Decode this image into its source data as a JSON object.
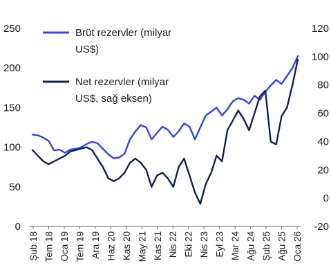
{
  "chart_data": {
    "type": "line",
    "x_tick_labels": [
      "Şub 18",
      "Tem 18",
      "Oca 19",
      "Tem 19",
      "Ara 19",
      "Haz 20",
      "Kas 20",
      "May 21",
      "Kas 21",
      "Nis 22",
      "Eki 22",
      "Nis 23",
      "Eyl 23",
      "Mar 24",
      "Ağu 24",
      "Şub 25",
      "Ağu 25",
      "Oca 26"
    ],
    "y_left_ticks": [
      0,
      50,
      100,
      150,
      200,
      250
    ],
    "y_right_ticks": [
      -20,
      0,
      20,
      40,
      60,
      80,
      100,
      120
    ],
    "ylim_left": [
      0,
      250
    ],
    "ylim_right": [
      -20,
      120
    ],
    "legend_placement": "top-left",
    "series": [
      {
        "name": "Brüt rezervler (milyar US$)",
        "name_lines": [
          "Brüt rezervler (milyar",
          "US$)"
        ],
        "axis": "left",
        "color": "#3344dd",
        "values": [
          116,
          115,
          112,
          108,
          96,
          97,
          93,
          97,
          98,
          100,
          104,
          107,
          105,
          98,
          91,
          86,
          87,
          92,
          110,
          120,
          128,
          125,
          110,
          118,
          126,
          122,
          113,
          120,
          130,
          126,
          110,
          125,
          140,
          145,
          150,
          140,
          148,
          158,
          162,
          160,
          155,
          165,
          160,
          170,
          178,
          185,
          180,
          190,
          200,
          215
        ]
      },
      {
        "name": "Net rezervler (milyar US$, sağ eksen)",
        "name_lines": [
          "Net rezervler (milyar",
          "US$, sağ eksen)"
        ],
        "axis": "right",
        "color": "#0f1f4d",
        "values": [
          34,
          30,
          26,
          24,
          26,
          28,
          30,
          33,
          34,
          35,
          36,
          34,
          28,
          22,
          14,
          12,
          14,
          18,
          25,
          28,
          25,
          20,
          8,
          16,
          18,
          14,
          8,
          22,
          28,
          16,
          4,
          -4,
          10,
          18,
          30,
          26,
          48,
          55,
          62,
          56,
          48,
          60,
          72,
          76,
          40,
          38,
          58,
          64,
          80,
          98
        ]
      }
    ]
  }
}
